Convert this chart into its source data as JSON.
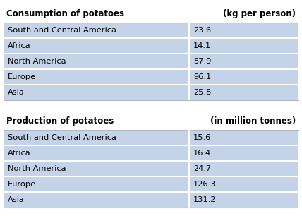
{
  "consumption_title": "Consumption of potatoes",
  "consumption_unit": "(kg per person)",
  "consumption_regions": [
    "South and Central America",
    "Africa",
    "North America",
    "Europe",
    "Asia"
  ],
  "consumption_values": [
    "23.6",
    "14.1",
    "57.9",
    "96.1",
    "25.8"
  ],
  "production_title": "Production of potatoes",
  "production_unit": "(in million tonnes)",
  "production_regions": [
    "South and Central America",
    "Africa",
    "North America",
    "Europe",
    "Asia"
  ],
  "production_values": [
    "15.6",
    "16.4",
    "24.7",
    "126.3",
    "131.2"
  ],
  "row_bg": "#c5d3e8",
  "border_color": "#ffffff",
  "text_color": "#000000",
  "title_fontsize": 8.5,
  "cell_fontsize": 8.2,
  "fig_bg": "#ffffff"
}
